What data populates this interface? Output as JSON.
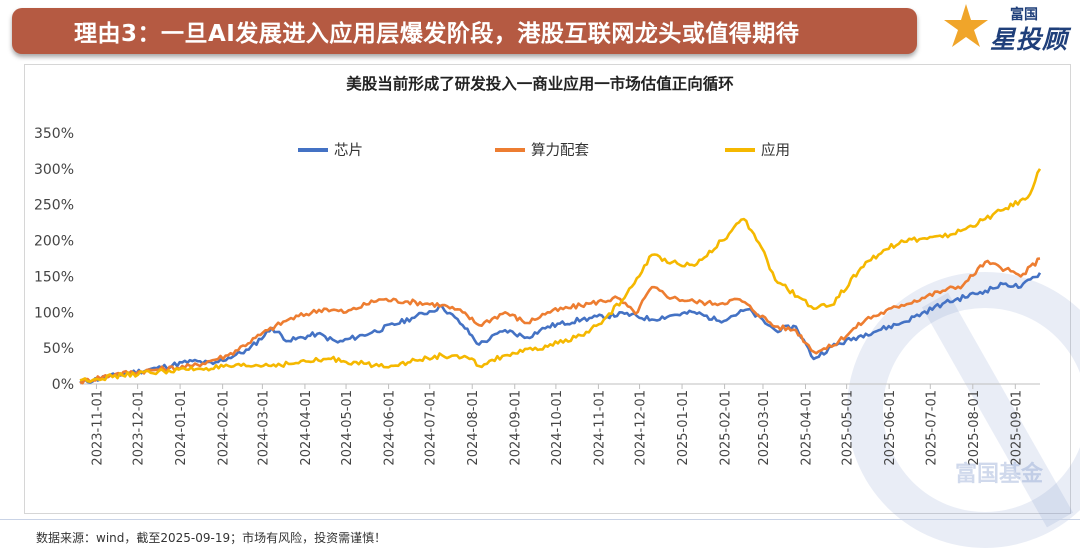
{
  "header": {
    "title": "理由3：一旦AI发展进入应用层爆发阶段，港股互联网龙头或值得期待",
    "logo_small": "富国",
    "logo_big": "星投顾",
    "banner_color": "#b55a42"
  },
  "footer": {
    "note": "数据来源：wind，截至2025-09-19；市场有风险，投资需谨慎！",
    "watermark": "富国基金"
  },
  "chart_data": {
    "type": "line",
    "title": "美股当前形成了研发投入一商业应用一市场估值正向循环",
    "xlabel": "",
    "ylabel": "",
    "ylim": [
      0,
      350
    ],
    "yticks": [
      0,
      50,
      100,
      150,
      200,
      250,
      300,
      350
    ],
    "ytick_labels": [
      "0%",
      "50%",
      "100%",
      "150%",
      "200%",
      "250%",
      "300%",
      "350%"
    ],
    "x_start": "2023-10-20",
    "x_end": "2025-09-19",
    "x_ticks": [
      "2023-11-01",
      "2023-12-01",
      "2024-01-01",
      "2024-02-01",
      "2024-03-01",
      "2024-04-01",
      "2024-05-01",
      "2024-06-01",
      "2024-07-01",
      "2024-08-01",
      "2024-09-01",
      "2024-10-01",
      "2024-11-01",
      "2024-12-01",
      "2025-01-01",
      "2025-02-01",
      "2025-03-01",
      "2025-04-01",
      "2025-05-01",
      "2025-06-01",
      "2025-07-01",
      "2025-08-01",
      "2025-09-01"
    ],
    "legend_position": "top",
    "grid": false,
    "series": [
      {
        "name": "芯片",
        "color": "#4472c4",
        "points": [
          [
            "2023-10-20",
            2
          ],
          [
            "2023-11-15",
            12
          ],
          [
            "2023-12-15",
            22
          ],
          [
            "2024-01-10",
            32
          ],
          [
            "2024-01-25",
            28
          ],
          [
            "2024-02-20",
            48
          ],
          [
            "2024-03-08",
            78
          ],
          [
            "2024-03-20",
            60
          ],
          [
            "2024-04-10",
            70
          ],
          [
            "2024-04-25",
            58
          ],
          [
            "2024-05-20",
            72
          ],
          [
            "2024-06-18",
            92
          ],
          [
            "2024-07-10",
            108
          ],
          [
            "2024-07-25",
            82
          ],
          [
            "2024-08-06",
            55
          ],
          [
            "2024-08-25",
            75
          ],
          [
            "2024-09-10",
            65
          ],
          [
            "2024-09-25",
            80
          ],
          [
            "2024-10-20",
            90
          ],
          [
            "2024-11-20",
            98
          ],
          [
            "2024-12-10",
            90
          ],
          [
            "2024-12-25",
            96
          ],
          [
            "2025-01-10",
            100
          ],
          [
            "2025-01-28",
            88
          ],
          [
            "2025-02-18",
            104
          ],
          [
            "2025-03-10",
            75
          ],
          [
            "2025-03-25",
            80
          ],
          [
            "2025-04-07",
            35
          ],
          [
            "2025-04-20",
            52
          ],
          [
            "2025-05-15",
            70
          ],
          [
            "2025-06-10",
            85
          ],
          [
            "2025-07-10",
            112
          ],
          [
            "2025-08-10",
            130
          ],
          [
            "2025-08-25",
            140
          ],
          [
            "2025-09-05",
            135
          ],
          [
            "2025-09-19",
            155
          ]
        ]
      },
      {
        "name": "算力配套",
        "color": "#ed7d31",
        "points": [
          [
            "2023-10-20",
            3
          ],
          [
            "2023-11-15",
            14
          ],
          [
            "2023-12-15",
            20
          ],
          [
            "2024-01-10",
            25
          ],
          [
            "2024-02-05",
            40
          ],
          [
            "2024-03-05",
            75
          ],
          [
            "2024-03-20",
            90
          ],
          [
            "2024-04-15",
            105
          ],
          [
            "2024-05-01",
            100
          ],
          [
            "2024-05-25",
            118
          ],
          [
            "2024-06-15",
            115
          ],
          [
            "2024-07-10",
            110
          ],
          [
            "2024-07-25",
            100
          ],
          [
            "2024-08-06",
            82
          ],
          [
            "2024-08-25",
            100
          ],
          [
            "2024-09-10",
            85
          ],
          [
            "2024-09-25",
            100
          ],
          [
            "2024-10-25",
            112
          ],
          [
            "2024-11-15",
            120
          ],
          [
            "2024-11-28",
            98
          ],
          [
            "2024-12-10",
            135
          ],
          [
            "2024-12-25",
            120
          ],
          [
            "2025-01-10",
            115
          ],
          [
            "2025-01-25",
            112
          ],
          [
            "2025-02-12",
            118
          ],
          [
            "2025-03-10",
            80
          ],
          [
            "2025-03-25",
            75
          ],
          [
            "2025-04-07",
            45
          ],
          [
            "2025-04-20",
            52
          ],
          [
            "2025-05-15",
            90
          ],
          [
            "2025-06-10",
            110
          ],
          [
            "2025-07-10",
            130
          ],
          [
            "2025-07-25",
            138
          ],
          [
            "2025-08-10",
            170
          ],
          [
            "2025-08-25",
            160
          ],
          [
            "2025-09-05",
            150
          ],
          [
            "2025-09-19",
            175
          ]
        ]
      },
      {
        "name": "应用",
        "color": "#f5b800",
        "points": [
          [
            "2023-10-20",
            5
          ],
          [
            "2023-11-20",
            12
          ],
          [
            "2023-12-20",
            18
          ],
          [
            "2024-01-20",
            22
          ],
          [
            "2024-03-20",
            28
          ],
          [
            "2024-04-20",
            35
          ],
          [
            "2024-05-25",
            25
          ],
          [
            "2024-06-15",
            30
          ],
          [
            "2024-07-10",
            40
          ],
          [
            "2024-07-30",
            35
          ],
          [
            "2024-08-06",
            25
          ],
          [
            "2024-08-25",
            40
          ],
          [
            "2024-09-25",
            52
          ],
          [
            "2024-10-25",
            72
          ],
          [
            "2024-11-05",
            90
          ],
          [
            "2024-11-20",
            120
          ],
          [
            "2024-12-10",
            180
          ],
          [
            "2024-12-25",
            170
          ],
          [
            "2025-01-10",
            165
          ],
          [
            "2025-01-30",
            200
          ],
          [
            "2025-02-15",
            230
          ],
          [
            "2025-02-28",
            190
          ],
          [
            "2025-03-10",
            145
          ],
          [
            "2025-03-28",
            120
          ],
          [
            "2025-04-07",
            105
          ],
          [
            "2025-04-20",
            110
          ],
          [
            "2025-05-15",
            170
          ],
          [
            "2025-06-10",
            200
          ],
          [
            "2025-07-10",
            205
          ],
          [
            "2025-07-25",
            215
          ],
          [
            "2025-08-10",
            230
          ],
          [
            "2025-08-25",
            245
          ],
          [
            "2025-09-10",
            260
          ],
          [
            "2025-09-19",
            300
          ]
        ]
      }
    ]
  }
}
